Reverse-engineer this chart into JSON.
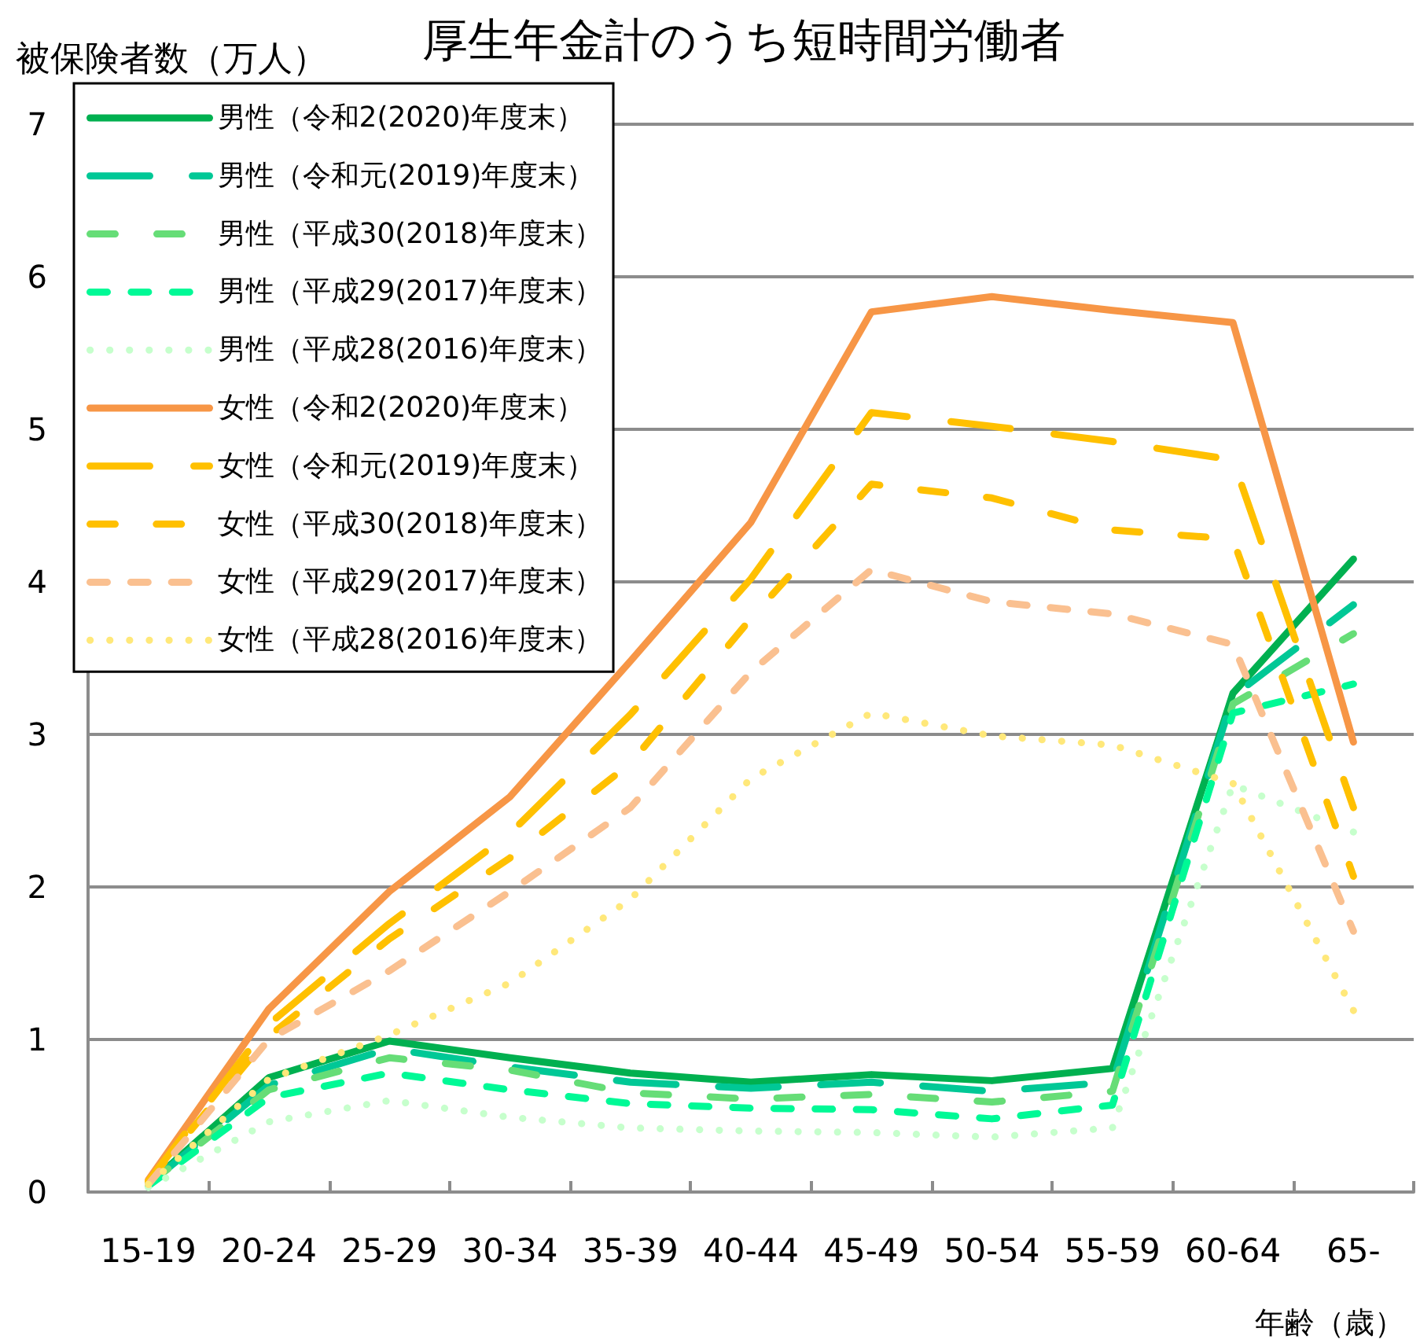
{
  "chart_data": {
    "type": "line",
    "title": "厚生年金計のうち短時間労働者",
    "xlabel": "年齢（歳）",
    "ylabel": "被保険者数（万人）",
    "categories": [
      "15-19",
      "20-24",
      "25-29",
      "30-34",
      "35-39",
      "40-44",
      "45-49",
      "50-54",
      "55-59",
      "60-64",
      "65-"
    ],
    "ylim": [
      0,
      7
    ],
    "yticks": [
      0,
      1,
      2,
      3,
      4,
      5,
      6,
      7
    ],
    "grid": "y",
    "legend": "top left",
    "marker": "none",
    "series": [
      {
        "name": "男性（令和2(2020)年度末）",
        "color": "#00b050",
        "line_style": "solid",
        "values": [
          0.05,
          0.75,
          0.99,
          0.88,
          0.78,
          0.72,
          0.77,
          0.73,
          0.81,
          3.27,
          4.15
        ]
      },
      {
        "name": "男性（令和元(2019)年度末）",
        "color": "#00c896",
        "line_style": "dashed",
        "values": [
          0.05,
          0.7,
          0.94,
          0.82,
          0.72,
          0.68,
          0.72,
          0.66,
          0.72,
          3.25,
          3.85
        ]
      },
      {
        "name": "男性（平成30(2018)年度末）",
        "color": "#66dd77",
        "line_style": "dashed",
        "values": [
          0.05,
          0.67,
          0.88,
          0.8,
          0.65,
          0.61,
          0.64,
          0.59,
          0.66,
          3.2,
          3.66
        ]
      },
      {
        "name": "男性（平成29(2017)年度末）",
        "color": "#00f996",
        "line_style": "dashed",
        "values": [
          0.04,
          0.62,
          0.78,
          0.67,
          0.58,
          0.55,
          0.54,
          0.48,
          0.57,
          3.14,
          3.33
        ]
      },
      {
        "name": "男性（平成28(2016)年度末）",
        "color": "#c6ffcc",
        "line_style": "dotted",
        "values": [
          0.03,
          0.46,
          0.6,
          0.49,
          0.42,
          0.4,
          0.39,
          0.36,
          0.42,
          2.67,
          2.36
        ]
      },
      {
        "name": "女性（令和2(2020)年度末）",
        "color": "#f79646",
        "line_style": "solid",
        "values": [
          0.08,
          1.2,
          1.97,
          2.59,
          3.48,
          4.39,
          5.77,
          5.87,
          5.78,
          5.7,
          2.95
        ]
      },
      {
        "name": "女性（令和元(2019)年度末）",
        "color": "#ffc000",
        "line_style": "dashed",
        "values": [
          0.07,
          1.1,
          1.76,
          2.35,
          3.13,
          4.02,
          5.11,
          5.02,
          4.92,
          4.8,
          2.52
        ]
      },
      {
        "name": "女性（平成30(2018)年度末）",
        "color": "#ffc000",
        "line_style": "dashed",
        "values": [
          0.07,
          1.02,
          1.66,
          2.19,
          2.81,
          3.76,
          4.64,
          4.55,
          4.34,
          4.28,
          2.07
        ]
      },
      {
        "name": "女性（平成29(2017)年度末）",
        "color": "#fac090",
        "line_style": "dashed",
        "values": [
          0.05,
          1.0,
          1.45,
          1.97,
          2.52,
          3.41,
          4.08,
          3.87,
          3.79,
          3.59,
          1.71
        ]
      },
      {
        "name": "女性（平成28(2016)年度末）",
        "color": "#ffe87a",
        "line_style": "dotted",
        "values": [
          0.05,
          0.74,
          1.03,
          1.37,
          1.92,
          2.71,
          3.14,
          2.99,
          2.93,
          2.68,
          1.19
        ]
      }
    ]
  }
}
